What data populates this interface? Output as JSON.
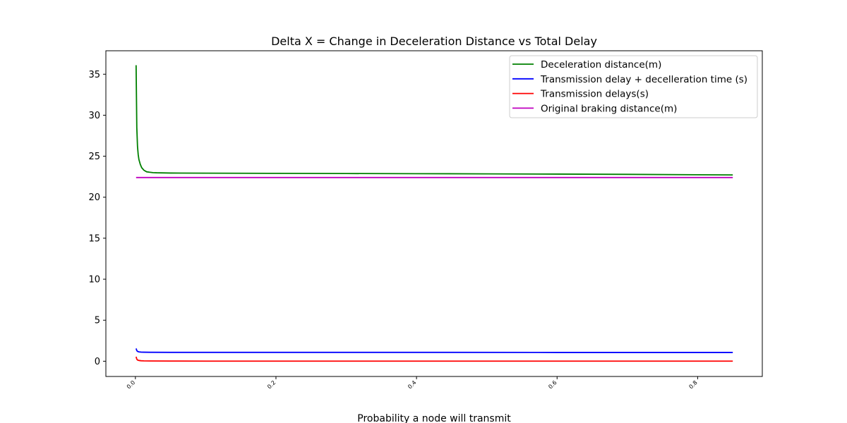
{
  "chart_data": {
    "type": "line",
    "title": "Delta X = Change in Deceleration Distance vs Total Delay",
    "xlabel": "Probability a node will transmit",
    "ylabel": "",
    "xlim": [
      -0.042,
      0.892
    ],
    "ylim": [
      -1.86,
      37.86
    ],
    "xticks": [
      0.0,
      0.2,
      0.4,
      0.6,
      0.8
    ],
    "xtick_labels": [
      "0.0",
      "0.2",
      "0.4",
      "0.6",
      "0.8"
    ],
    "xtick_rotation": 45,
    "yticks": [
      0,
      5,
      10,
      15,
      20,
      25,
      30,
      35
    ],
    "ytick_labels": [
      "0",
      "5",
      "10",
      "15",
      "20",
      "25",
      "30",
      "35"
    ],
    "grid": false,
    "legend_position": "top-right",
    "series": [
      {
        "name": "Deceleration distance(m)",
        "color": "#008000",
        "x": [
          0.001,
          0.002,
          0.003,
          0.004,
          0.005,
          0.007,
          0.009,
          0.012,
          0.016,
          0.02,
          0.025,
          0.03,
          0.05,
          0.1,
          0.2,
          0.3,
          0.4,
          0.5,
          0.6,
          0.7,
          0.8,
          0.85
        ],
        "y": [
          36.1,
          28.5,
          26.2,
          25.2,
          24.6,
          24.0,
          23.6,
          23.3,
          23.1,
          23.05,
          23.0,
          22.98,
          22.95,
          22.93,
          22.91,
          22.89,
          22.87,
          22.85,
          22.82,
          22.79,
          22.74,
          22.72
        ]
      },
      {
        "name": "Transmission delay + decelleration time (s)",
        "color": "#0000ff",
        "x": [
          0.001,
          0.002,
          0.003,
          0.005,
          0.008,
          0.012,
          0.02,
          0.05,
          0.1,
          0.2,
          0.4,
          0.6,
          0.8,
          0.85
        ],
        "y": [
          1.55,
          1.3,
          1.2,
          1.14,
          1.11,
          1.1,
          1.09,
          1.08,
          1.08,
          1.08,
          1.08,
          1.07,
          1.07,
          1.07
        ]
      },
      {
        "name": "Transmission delays(s)",
        "color": "#ff0000",
        "x": [
          0.001,
          0.002,
          0.003,
          0.005,
          0.008,
          0.012,
          0.02,
          0.05,
          0.1,
          0.2,
          0.4,
          0.6,
          0.8,
          0.85
        ],
        "y": [
          0.55,
          0.25,
          0.15,
          0.09,
          0.06,
          0.04,
          0.03,
          0.02,
          0.01,
          0.01,
          0.01,
          0.01,
          0.01,
          0.01
        ]
      },
      {
        "name": "Original braking distance(m)",
        "color": "#bf00bf",
        "x": [
          0.001,
          0.85
        ],
        "y": [
          22.4,
          22.4
        ]
      }
    ]
  }
}
